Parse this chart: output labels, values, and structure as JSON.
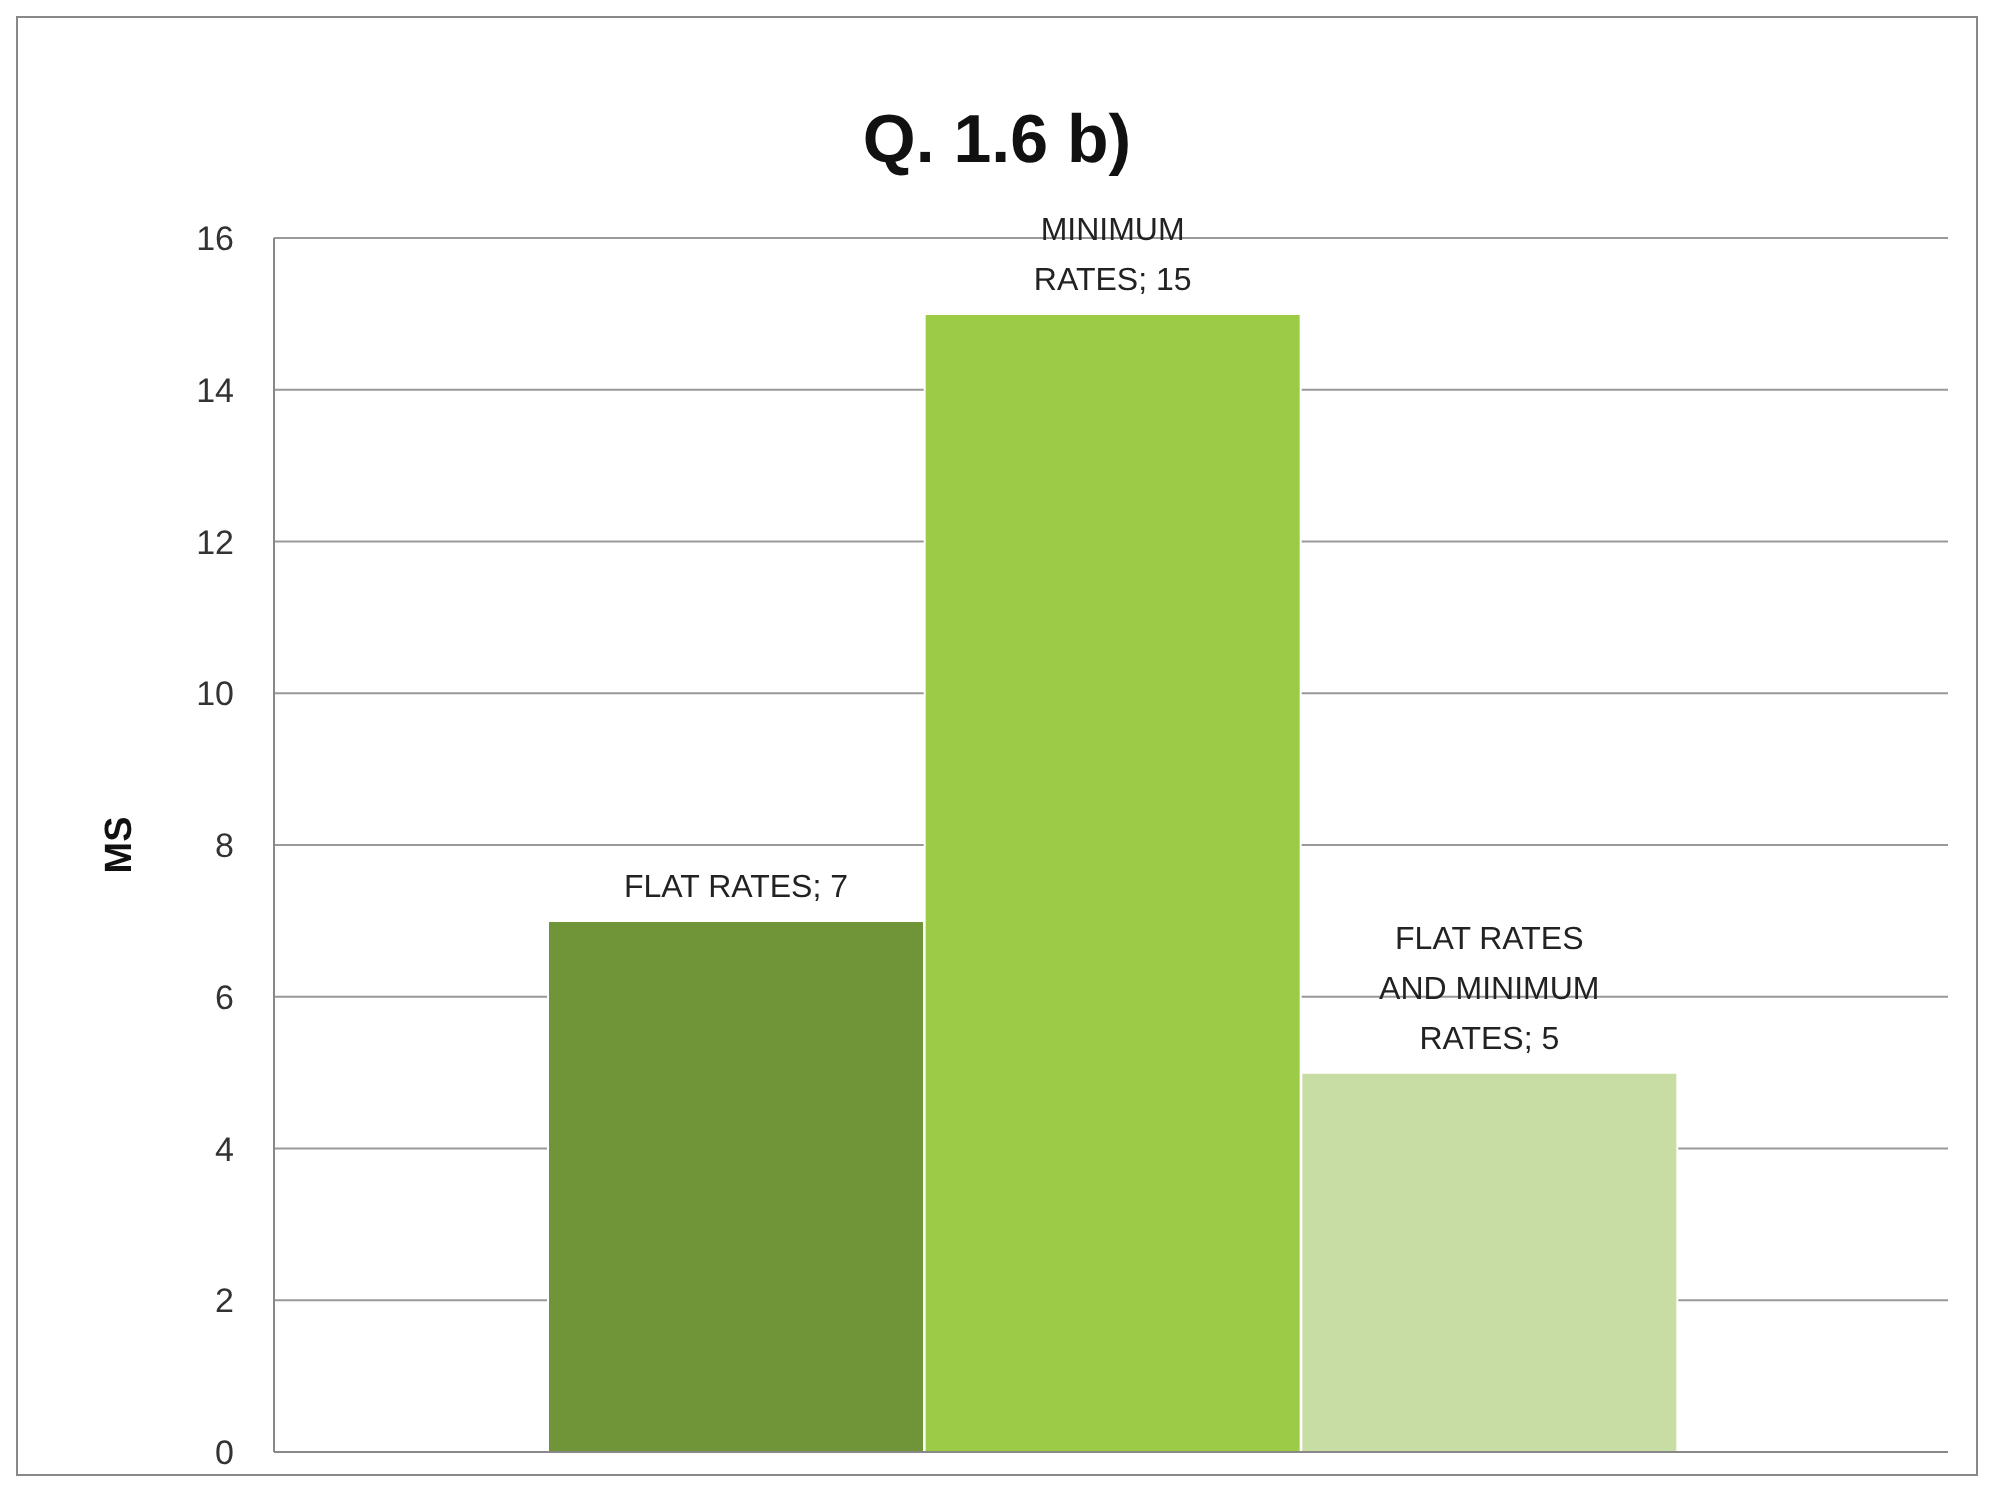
{
  "chart_data": {
    "type": "bar",
    "title": "Q. 1.6 b)",
    "ylabel": "MS",
    "categories": [
      null,
      null,
      null
    ],
    "values": [
      7,
      15,
      5
    ],
    "colors": [
      "#6f9538",
      "#9ccc45",
      "#c8dda3"
    ],
    "value_labels": [
      "FLAT RATES; 7",
      "MINIMUM RATES; 15",
      "FLAT RATES AND MINIMUM RATES; 5"
    ],
    "ylim": [
      0,
      16
    ],
    "yticks": [
      0,
      2,
      4,
      6,
      8,
      10,
      12,
      14,
      16
    ],
    "grid": "y"
  }
}
